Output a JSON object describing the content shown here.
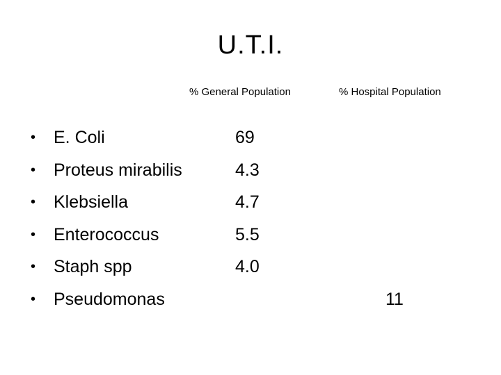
{
  "slide": {
    "title": "U.T.I.",
    "columns": {
      "general": "% General Population",
      "hospital": "% Hospital Population"
    },
    "bullet_glyph": "•",
    "rows": [
      {
        "organism": "E. Coli",
        "general": "69",
        "hospital": ""
      },
      {
        "organism": "Proteus mirabilis",
        "general": "4.3",
        "hospital": ""
      },
      {
        "organism": "Klebsiella",
        "general": "4.7",
        "hospital": ""
      },
      {
        "organism": "Enterococcus",
        "general": "5.5",
        "hospital": ""
      },
      {
        "organism": "Staph spp",
        "general": "4.0",
        "hospital": ""
      },
      {
        "organism": "Pseudomonas",
        "general": "",
        "hospital": "11"
      }
    ]
  }
}
